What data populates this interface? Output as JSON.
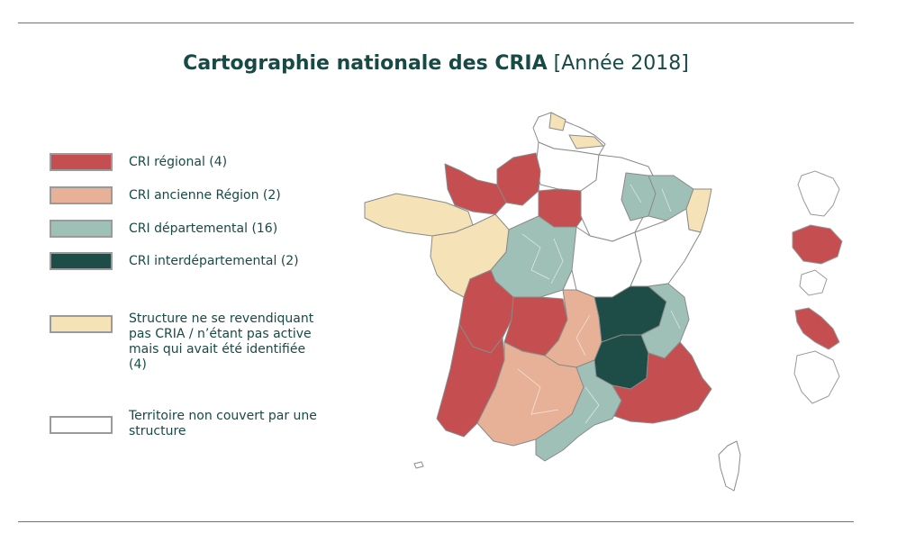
{
  "header": {
    "title": "Cartographie nationale des CRIA",
    "year_tag": "[Année 2018]"
  },
  "colors": {
    "cri_regional": "#c54f50",
    "ancienne_region": "#e6b196",
    "departemental": "#9fc0b7",
    "interdepartemental": "#1e4c47",
    "non_revendique": "#f5e3b7",
    "non_couvert": "#ffffff",
    "rule": "#b85552",
    "text": "#174a45"
  },
  "legend": {
    "cri_regional": "CRI régional (4)",
    "ancienne_region": "CRI ancienne Région (2)",
    "departemental": "CRI départemental (16)",
    "interdepartemental": "CRI interdépartemental (2)",
    "non_revendique": [
      "Structure ne se revendiquant",
      "pas CRIA / n’étant pas active",
      "mais qui avait été identifiée",
      "(4)"
    ],
    "non_couvert": [
      "Territoire non couvert par une",
      "structure"
    ]
  }
}
